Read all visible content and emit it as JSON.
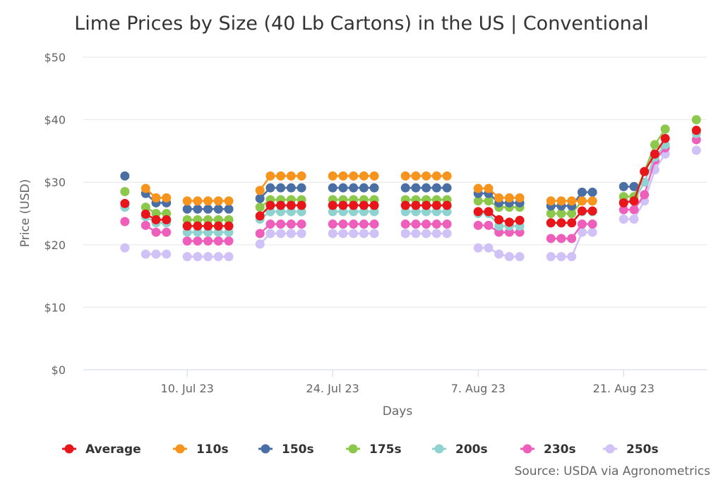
{
  "chart_data": {
    "type": "line",
    "title": "Lime Prices by Size (40 Lb Cartons) in the US | Conventional",
    "xlabel": "Days",
    "ylabel": "Price (USD)",
    "ylim": [
      0,
      50
    ],
    "y_ticks": [
      "$0",
      "$10",
      "$20",
      "$30",
      "$40",
      "$50"
    ],
    "y_tick_values": [
      0,
      10,
      20,
      30,
      40,
      50
    ],
    "x_ticks": [
      "10. Jul 23",
      "24. Jul 23",
      "7. Aug 23",
      "21. Aug 23"
    ],
    "x_tick_days": [
      10,
      24,
      38,
      52
    ],
    "x_range_days": [
      0,
      60
    ],
    "x_day_label": "day index where 1 = 1. Jul 23",
    "groups": [
      [
        4
      ],
      [
        6,
        7,
        8
      ],
      [
        10,
        11,
        12,
        13,
        14
      ],
      [
        17,
        18,
        19,
        20,
        21
      ],
      [
        24,
        25,
        26,
        27,
        28
      ],
      [
        31,
        32,
        33,
        34,
        35
      ],
      [
        38,
        39,
        40,
        41,
        42
      ],
      [
        45,
        46,
        47,
        48,
        49
      ],
      [
        52,
        53,
        54,
        55,
        56
      ],
      [
        59
      ]
    ],
    "x": [
      4,
      6,
      7,
      8,
      10,
      11,
      12,
      13,
      14,
      17,
      18,
      19,
      20,
      21,
      24,
      25,
      26,
      27,
      28,
      31,
      32,
      33,
      34,
      35,
      38,
      39,
      40,
      41,
      42,
      45,
      46,
      47,
      48,
      49,
      52,
      53,
      54,
      55,
      56,
      59
    ],
    "series": [
      {
        "name": "Average",
        "color": "#e8161a",
        "values": [
          26.6,
          24.9,
          24.0,
          24.0,
          23.0,
          23.0,
          23.0,
          23.0,
          23.0,
          24.6,
          26.3,
          26.3,
          26.3,
          26.3,
          26.3,
          26.3,
          26.3,
          26.3,
          26.3,
          26.3,
          26.3,
          26.3,
          26.3,
          26.3,
          25.3,
          25.3,
          24.0,
          23.6,
          23.9,
          23.5,
          23.5,
          23.5,
          25.4,
          25.4,
          26.7,
          27.0,
          31.7,
          34.5,
          37.0,
          38.3
        ]
      },
      {
        "name": "110s",
        "color": "#f7941d",
        "values": [
          null,
          29.0,
          27.5,
          27.5,
          27.0,
          27.0,
          27.0,
          27.0,
          27.0,
          28.7,
          31.0,
          31.0,
          31.0,
          31.0,
          31.0,
          31.0,
          31.0,
          31.0,
          31.0,
          31.0,
          31.0,
          31.0,
          31.0,
          31.0,
          29.0,
          29.0,
          27.5,
          27.5,
          27.5,
          27.0,
          27.0,
          27.0,
          27.0,
          27.0,
          null,
          null,
          null,
          null,
          null,
          null
        ]
      },
      {
        "name": "150s",
        "color": "#4a6fa5",
        "values": [
          31.0,
          28.2,
          26.7,
          26.7,
          25.7,
          25.7,
          25.7,
          25.7,
          25.7,
          27.4,
          29.1,
          29.1,
          29.1,
          29.1,
          29.1,
          29.1,
          29.1,
          29.1,
          29.1,
          29.1,
          29.1,
          29.1,
          29.1,
          29.1,
          28.2,
          28.2,
          26.7,
          26.7,
          26.7,
          26.2,
          26.2,
          26.2,
          28.4,
          28.4,
          29.3,
          29.3,
          null,
          null,
          null,
          null
        ]
      },
      {
        "name": "175s",
        "color": "#8cc84b",
        "values": [
          28.5,
          26.0,
          25.0,
          25.0,
          24.0,
          24.0,
          24.0,
          24.0,
          24.0,
          26.0,
          27.2,
          27.2,
          27.2,
          27.2,
          27.2,
          27.2,
          27.2,
          27.2,
          27.2,
          27.2,
          27.2,
          27.2,
          27.2,
          27.2,
          27.0,
          27.0,
          26.0,
          26.0,
          26.0,
          25.0,
          25.0,
          25.0,
          27.0,
          27.0,
          27.7,
          27.7,
          31.7,
          36.0,
          38.5,
          40.0
        ]
      },
      {
        "name": "200s",
        "color": "#8fd3d1",
        "values": [
          26.0,
          24.5,
          23.5,
          23.5,
          22.0,
          22.0,
          22.0,
          22.0,
          22.0,
          24.1,
          25.3,
          25.3,
          25.3,
          25.3,
          25.3,
          25.3,
          25.3,
          25.3,
          25.3,
          25.3,
          25.3,
          25.3,
          25.3,
          25.3,
          25.0,
          25.0,
          23.0,
          23.0,
          23.0,
          23.5,
          23.5,
          23.5,
          25.3,
          25.3,
          27.0,
          27.0,
          30.0,
          34.0,
          36.0,
          37.8
        ]
      },
      {
        "name": "230s",
        "color": "#ee5fbb",
        "values": [
          23.7,
          23.1,
          22.0,
          22.0,
          20.6,
          20.6,
          20.6,
          20.6,
          20.6,
          21.8,
          23.3,
          23.3,
          23.3,
          23.3,
          23.3,
          23.3,
          23.3,
          23.3,
          23.3,
          23.3,
          23.3,
          23.3,
          23.3,
          23.3,
          23.1,
          23.1,
          22.0,
          22.0,
          22.0,
          21.0,
          21.0,
          21.0,
          23.3,
          23.3,
          25.6,
          25.6,
          28.0,
          33.5,
          35.5,
          36.8
        ]
      },
      {
        "name": "250s",
        "color": "#d0c1f7",
        "values": [
          19.5,
          18.5,
          18.5,
          18.5,
          18.1,
          18.1,
          18.1,
          18.1,
          18.1,
          20.1,
          21.8,
          21.8,
          21.8,
          21.8,
          21.8,
          21.8,
          21.8,
          21.8,
          21.8,
          21.8,
          21.8,
          21.8,
          21.8,
          21.8,
          19.5,
          19.5,
          18.5,
          18.1,
          18.1,
          18.1,
          18.1,
          18.1,
          22.0,
          22.0,
          24.1,
          24.1,
          27.0,
          32.0,
          34.5,
          35.1
        ]
      }
    ],
    "legend": [
      "Average",
      "110s",
      "150s",
      "175s",
      "200s",
      "230s",
      "250s"
    ],
    "legend_position": "bottom",
    "grid": true,
    "source": "Source: USDA via Agronometrics"
  }
}
